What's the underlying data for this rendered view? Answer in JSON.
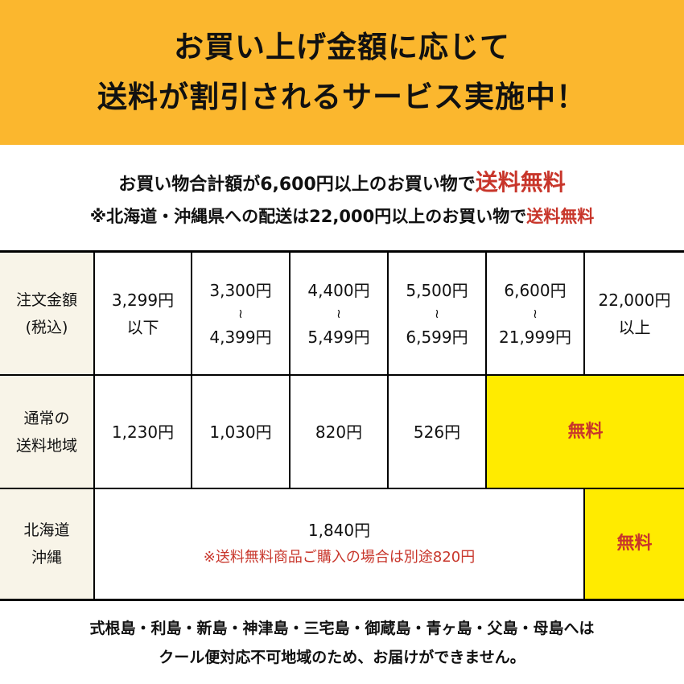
{
  "banner": {
    "line1": "お買い上げ金額に応じて",
    "line2": "送料が割引されるサービス実施中！"
  },
  "intro": {
    "line1_text": "お買い物合計額が6,600円以上のお買い物で",
    "line1_highlight": "送料無料",
    "line2_text": "※北海道・沖縄県への配送は22,000円以上のお買い物で",
    "line2_highlight": "送料無料"
  },
  "table": {
    "header_label": [
      "注文金額",
      "(税込)"
    ],
    "tiers": [
      {
        "from": "3,299円",
        "to": "以下"
      },
      {
        "from": "3,300円",
        "sep": "≀",
        "to": "4,399円"
      },
      {
        "from": "4,400円",
        "sep": "≀",
        "to": "5,499円"
      },
      {
        "from": "5,500円",
        "sep": "≀",
        "to": "6,599円"
      },
      {
        "from": "6,600円",
        "sep": "≀",
        "to": "21,999円"
      },
      {
        "from": "22,000円",
        "to": "以上"
      }
    ],
    "normal": {
      "label": [
        "通常の",
        "送料地域"
      ],
      "fees": [
        "1,230円",
        "1,030円",
        "820円",
        "526円"
      ],
      "free": "無料"
    },
    "hokkaido": {
      "label": [
        "北海道",
        "沖縄"
      ],
      "fee": "1,840円",
      "note": "※送料無料商品ご購入の場合は別途820円",
      "free": "無料"
    }
  },
  "footer": {
    "line1": "式根島・利島・新島・神津島・三宅島・御蔵島・青ヶ島・父島・母島へは",
    "line2": "クール便対応不可地域のため、お届けができません。"
  },
  "colors": {
    "banner": "#FBB72E",
    "highlight_red": "#C8362B",
    "free_yellow": "#FFEB00",
    "header_bg": "#F8F4E8"
  }
}
